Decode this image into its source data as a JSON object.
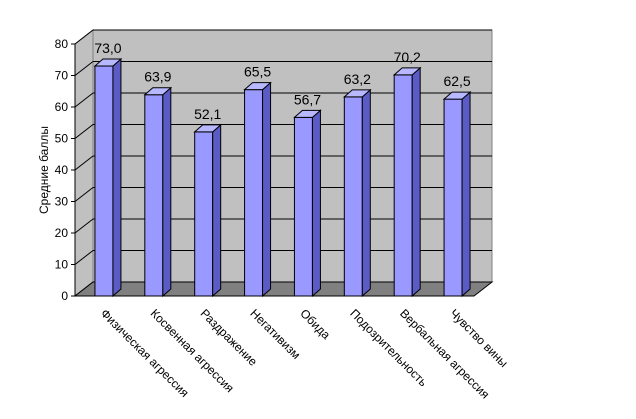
{
  "chart_data": {
    "type": "bar",
    "categories": [
      "Физическая агрессия",
      "Косвенная агрессия",
      "Раздражение",
      "Негативизм",
      "Обида",
      "Подозрительность",
      "Вербальная агрессия",
      "Чувство вины"
    ],
    "values": [
      73.0,
      63.9,
      52.1,
      65.5,
      56.7,
      63.2,
      70.2,
      62.5
    ],
    "data_labels": [
      "73,0",
      "63,9",
      "52,1",
      "65,5",
      "56,7",
      "63,2",
      "70,2",
      "62,5"
    ],
    "yticks": [
      "0",
      "10",
      "20",
      "30",
      "40",
      "50",
      "60",
      "70",
      "80"
    ],
    "ylabel": "Средние баллы",
    "xlabel": "",
    "title": "",
    "ylim": [
      0,
      80
    ],
    "grid": true,
    "style": "3d-column",
    "colors": {
      "bar_front": "#9999ff",
      "bar_side": "#5b5bc6",
      "bar_top": "#b8b8ff",
      "wall": "#c0c0c0",
      "floor": "#808080",
      "edge": "#000000"
    }
  }
}
